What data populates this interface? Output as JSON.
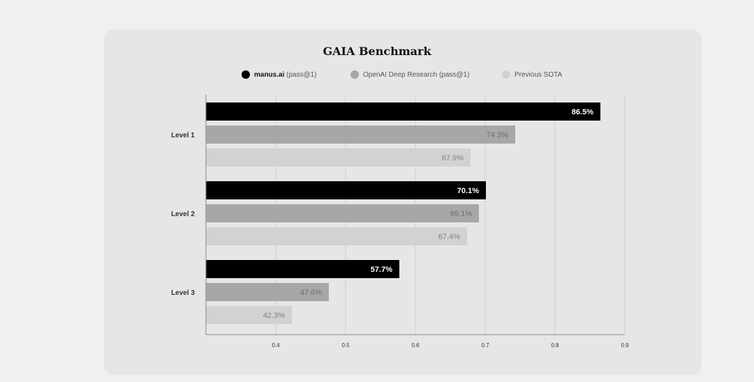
{
  "chart_data": {
    "type": "bar",
    "orientation": "horizontal",
    "title": "GAIA Benchmark",
    "categories": [
      "Level 1",
      "Level 2",
      "Level 3"
    ],
    "series": [
      {
        "name": "manus.ai (pass@1)",
        "name_bold": "manus.ai",
        "name_rest": " (pass@1)",
        "color": "#000000",
        "label_color": "#ffffff",
        "values": [
          0.865,
          0.701,
          0.577
        ],
        "labels": [
          "86.5%",
          "70.1%",
          "57.7%"
        ]
      },
      {
        "name": "OpenAI Deep Research (pass@1)",
        "color": "#a7a7aa",
        "label_color": "#6e6e72",
        "values": [
          0.743,
          0.691,
          0.476
        ],
        "labels": [
          "74.3%",
          "69.1%",
          "47.6%"
        ]
      },
      {
        "name": "Previous SOTA",
        "color": "#d2d2d5",
        "label_color": "#808084",
        "values": [
          0.679,
          0.674,
          0.423
        ],
        "labels": [
          "67.9%",
          "67.4%",
          "42.3%"
        ]
      }
    ],
    "xlim": [
      0.3,
      0.9
    ],
    "xticks": [
      0.4,
      0.5,
      0.6,
      0.7,
      0.8,
      0.9
    ],
    "xtick_labels": [
      "0.4",
      "0.5",
      "0.6",
      "0.7",
      "0.8",
      "0.9"
    ],
    "grid": true,
    "legend_position": "top-center"
  }
}
